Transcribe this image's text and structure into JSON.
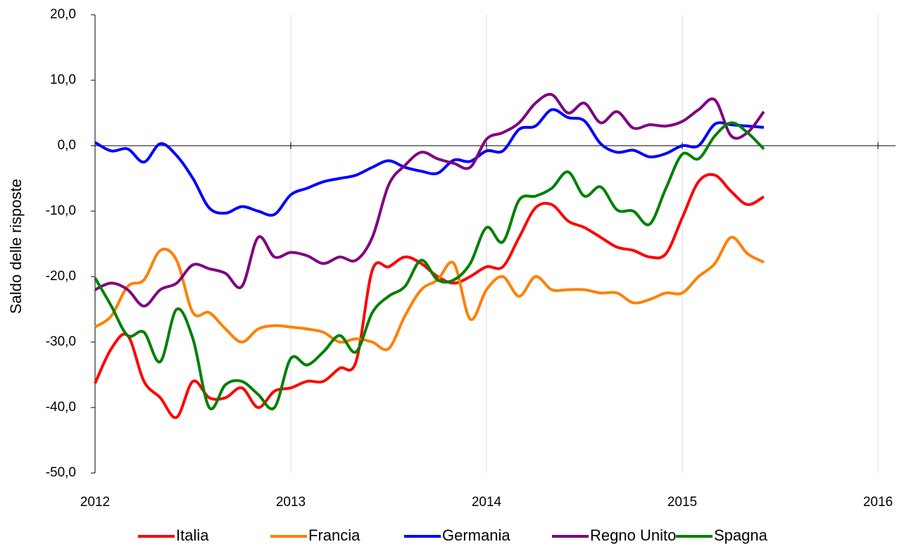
{
  "chart_data": {
    "type": "line",
    "ylabel": "Saldo delle risposte",
    "x": [
      2012,
      2012.0833,
      2012.1667,
      2012.25,
      2012.3333,
      2012.4167,
      2012.5,
      2012.5833,
      2012.6667,
      2012.75,
      2012.8333,
      2012.9167,
      2013,
      2013.0833,
      2013.1667,
      2013.25,
      2013.3333,
      2013.4167,
      2013.5,
      2013.5833,
      2013.6667,
      2013.75,
      2013.8333,
      2013.9167,
      2014,
      2014.0833,
      2014.1667,
      2014.25,
      2014.3333,
      2014.4167,
      2014.5,
      2014.5833,
      2014.6667,
      2014.75,
      2014.8333,
      2014.9167,
      2015,
      2015.0833,
      2015.1667,
      2015.25,
      2015.3333,
      2015.4167
    ],
    "series": [
      {
        "name": "Italia",
        "color": "#ff0000",
        "values": [
          -36.3,
          -31,
          -29,
          -36,
          -38.5,
          -41.5,
          -36,
          -38.5,
          -38.5,
          -37,
          -40,
          -37.5,
          -37,
          -36,
          -36,
          -34,
          -33,
          -19,
          -18.5,
          -17,
          -18,
          -20,
          -21,
          -20,
          -18.5,
          -18.5,
          -14,
          -9.5,
          -9,
          -11.5,
          -12.5,
          -14,
          -15.5,
          -16,
          -17,
          -16.5,
          -11,
          -5.5,
          -4.5,
          -7,
          -9,
          -7.8
        ]
      },
      {
        "name": "Francia",
        "color": "#ff8000",
        "values": [
          -27.7,
          -26,
          -21.5,
          -20.5,
          -16,
          -17.5,
          -25.5,
          -25.5,
          -28,
          -30,
          -28,
          -27.5,
          -27.7,
          -28,
          -28.5,
          -30,
          -29.5,
          -30,
          -31,
          -26,
          -22,
          -20.5,
          -18,
          -26.5,
          -22,
          -20,
          -23,
          -20,
          -22,
          -22,
          -22,
          -22.5,
          -22.5,
          -24,
          -23.5,
          -22.5,
          -22.5,
          -20,
          -18,
          -14,
          -16.5,
          -17.8
        ]
      },
      {
        "name": "Germania",
        "color": "#0000ff",
        "values": [
          0.5,
          -0.8,
          -0.5,
          -2.5,
          0.3,
          -1.5,
          -5,
          -9.5,
          -10.3,
          -9.3,
          -10,
          -10.5,
          -7.5,
          -6.5,
          -5.5,
          -5,
          -4.5,
          -3.3,
          -2.3,
          -3.3,
          -3.9,
          -4.2,
          -2.2,
          -2.4,
          -0.8,
          -0.8,
          2.5,
          3,
          5.5,
          4.3,
          3.8,
          0.3,
          -1,
          -0.7,
          -1.7,
          -1.2,
          0,
          0,
          3.3,
          3.2,
          3,
          2.8
        ]
      },
      {
        "name": "Regno Unito",
        "color": "#800080",
        "values": [
          -22,
          -21,
          -22,
          -24.5,
          -22,
          -21,
          -18.2,
          -18.8,
          -19.5,
          -21.5,
          -14,
          -17,
          -16.3,
          -16.8,
          -18,
          -17,
          -17.5,
          -14,
          -6,
          -3,
          -1,
          -2,
          -2.7,
          -3.3,
          1,
          2,
          3.5,
          6.5,
          7.8,
          5,
          6.5,
          3.5,
          5.2,
          2.7,
          3.2,
          3,
          3.7,
          5.5,
          7,
          1.5,
          2,
          5.2
        ]
      },
      {
        "name": "Spagna",
        "color": "#008000",
        "values": [
          -20.2,
          -24.5,
          -29,
          -28.5,
          -33,
          -25,
          -29.5,
          -40,
          -36.5,
          -36,
          -38,
          -40,
          -32.5,
          -33.5,
          -31.5,
          -29,
          -31.5,
          -25.5,
          -23,
          -21.5,
          -17.5,
          -20.5,
          -20.5,
          -18,
          -12.5,
          -14.7,
          -8.3,
          -7.7,
          -6.5,
          -4,
          -7.7,
          -6.3,
          -9.8,
          -10,
          -12,
          -6.5,
          -1.3,
          -2,
          1.5,
          3.5,
          2,
          -0.5
        ]
      }
    ],
    "xlim": [
      2012,
      2016
    ],
    "xticks": [
      2012,
      2013,
      2014,
      2015,
      2016
    ],
    "ylim": [
      -50,
      20
    ],
    "yticks": [
      {
        "value": -50,
        "label": "-50,0"
      },
      {
        "value": -40,
        "label": "-40,0"
      },
      {
        "value": -30,
        "label": "-30,0"
      },
      {
        "value": -20,
        "label": "-20,0"
      },
      {
        "value": -10,
        "label": "-10,0"
      },
      {
        "value": 0,
        "label": "0,0"
      },
      {
        "value": 10,
        "label": "10,0"
      },
      {
        "value": 20,
        "label": "20,0"
      }
    ],
    "grid": "x",
    "legend": "bottom"
  }
}
